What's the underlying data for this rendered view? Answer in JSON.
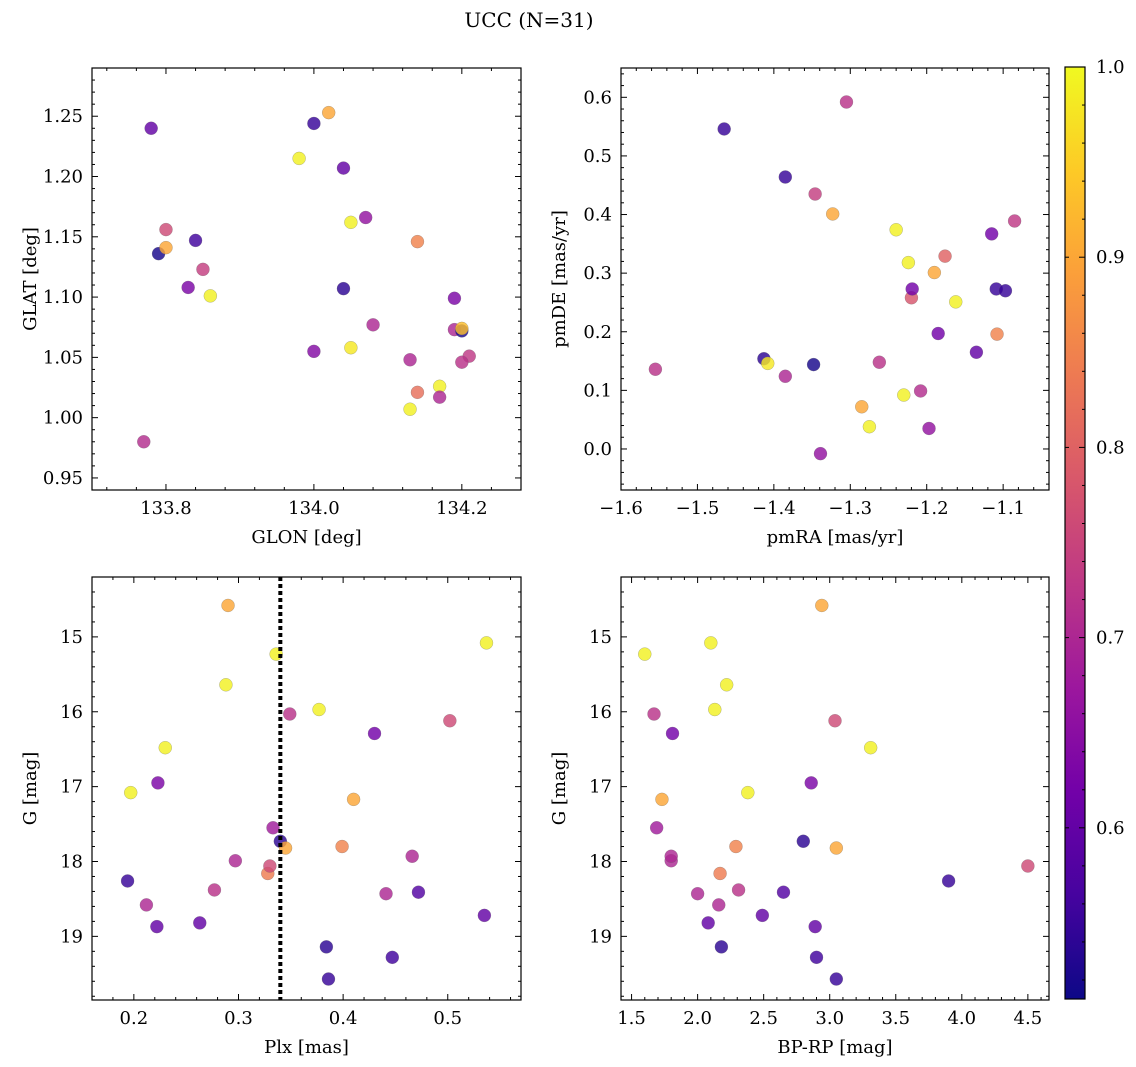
{
  "figure": {
    "suptitle": "UCC (N=31)"
  },
  "colormap": {
    "name": "plasma",
    "clim": [
      0.51,
      1.0
    ],
    "ticks": [
      "0.6",
      "0.7",
      "0.8",
      "0.9",
      "1.0"
    ],
    "tick_values": [
      0.6,
      0.7,
      0.8,
      0.9,
      1.0
    ],
    "stops": [
      "#0d0887",
      "#46039f",
      "#7201a8",
      "#9c179e",
      "#bd3786",
      "#d8576b",
      "#ed7953",
      "#fb9f3a",
      "#fdca26",
      "#f0f921"
    ]
  },
  "chart_data": [
    {
      "type": "scatter",
      "xlabel": "GLON [deg]",
      "ylabel": "GLAT [deg]",
      "xlim": [
        133.7,
        134.28
      ],
      "ylim": [
        0.94,
        1.29
      ],
      "xticks": [
        "133.8",
        "134.0",
        "134.2"
      ],
      "xtick_values": [
        133.8,
        134.0,
        134.2
      ],
      "yticks": [
        "0.95",
        "1.00",
        "1.05",
        "1.10",
        "1.15",
        "1.20",
        "1.25"
      ],
      "ytick_values": [
        0.95,
        1.0,
        1.05,
        1.1,
        1.15,
        1.2,
        1.25
      ],
      "x": [
        133.78,
        133.79,
        133.8,
        133.8,
        133.83,
        133.84,
        133.85,
        133.86,
        133.77,
        134.0,
        134.02,
        133.98,
        134.04,
        134.05,
        134.07,
        134.04,
        134.08,
        134.0,
        134.05,
        134.14,
        134.13,
        134.14,
        134.13,
        134.17,
        134.17,
        134.19,
        134.19,
        134.2,
        134.2,
        134.21,
        134.2
      ],
      "y": [
        1.24,
        1.136,
        1.141,
        1.156,
        1.108,
        1.147,
        1.123,
        1.101,
        0.98,
        1.244,
        1.253,
        1.215,
        1.207,
        1.162,
        1.166,
        1.107,
        1.077,
        1.055,
        1.058,
        1.146,
        1.048,
        1.021,
        1.007,
        1.026,
        1.017,
        1.099,
        1.073,
        1.072,
        1.074,
        1.051,
        1.046
      ],
      "c": [
        0.6,
        0.52,
        0.9,
        0.76,
        0.63,
        0.56,
        0.74,
        0.99,
        0.71,
        0.55,
        0.9,
        0.99,
        0.6,
        0.99,
        0.66,
        0.54,
        0.7,
        0.64,
        0.98,
        0.85,
        0.7,
        0.82,
        0.99,
        0.99,
        0.7,
        0.63,
        0.7,
        0.52,
        0.93,
        0.73,
        0.72
      ]
    },
    {
      "type": "scatter",
      "xlabel": "pmRA [mas/yr]",
      "ylabel": "pmDE [mas/yr]",
      "xlim": [
        -1.6,
        -1.04
      ],
      "ylim": [
        -0.07,
        0.65
      ],
      "xticks": [
        "−1.6",
        "−1.5",
        "−1.4",
        "−1.3",
        "−1.2",
        "−1.1"
      ],
      "xtick_values": [
        -1.6,
        -1.5,
        -1.4,
        -1.3,
        -1.2,
        -1.1
      ],
      "yticks": [
        "0.0",
        "0.1",
        "0.2",
        "0.3",
        "0.4",
        "0.5",
        "0.6"
      ],
      "ytick_values": [
        0.0,
        0.1,
        0.2,
        0.3,
        0.4,
        0.5,
        0.6
      ],
      "x": [
        -1.555,
        -1.465,
        -1.413,
        -1.408,
        -1.385,
        -1.385,
        -1.348,
        -1.346,
        -1.339,
        -1.323,
        -1.305,
        -1.285,
        -1.275,
        -1.262,
        -1.24,
        -1.23,
        -1.224,
        -1.22,
        -1.219,
        -1.208,
        -1.197,
        -1.19,
        -1.185,
        -1.176,
        -1.162,
        -1.135,
        -1.115,
        -1.109,
        -1.108,
        -1.097,
        -1.085
      ],
      "y": [
        0.136,
        0.546,
        0.154,
        0.146,
        0.124,
        0.464,
        0.144,
        0.435,
        -0.008,
        0.401,
        0.592,
        0.072,
        0.038,
        0.148,
        0.374,
        0.092,
        0.318,
        0.258,
        0.273,
        0.099,
        0.035,
        0.301,
        0.197,
        0.329,
        0.251,
        0.165,
        0.367,
        0.273,
        0.196,
        0.27,
        0.389
      ],
      "c": [
        0.72,
        0.55,
        0.54,
        0.98,
        0.7,
        0.55,
        0.52,
        0.74,
        0.66,
        0.9,
        0.72,
        0.9,
        0.99,
        0.72,
        0.99,
        0.99,
        0.99,
        0.78,
        0.62,
        0.71,
        0.66,
        0.9,
        0.62,
        0.8,
        0.99,
        0.6,
        0.62,
        0.55,
        0.85,
        0.55,
        0.73
      ]
    },
    {
      "type": "scatter",
      "xlabel": "Plx [mas]",
      "ylabel": "G [mag]",
      "xlim": [
        0.16,
        0.57
      ],
      "ylim": [
        19.85,
        14.2
      ],
      "xticks": [
        "0.2",
        "0.3",
        "0.4",
        "0.5"
      ],
      "xtick_values": [
        0.2,
        0.3,
        0.4,
        0.5
      ],
      "yticks": [
        "15",
        "16",
        "17",
        "18",
        "19"
      ],
      "ytick_values": [
        15,
        16,
        17,
        18,
        19
      ],
      "vline": 0.34,
      "x": [
        0.194,
        0.197,
        0.212,
        0.222,
        0.223,
        0.23,
        0.263,
        0.277,
        0.288,
        0.29,
        0.297,
        0.328,
        0.33,
        0.333,
        0.336,
        0.34,
        0.345,
        0.349,
        0.377,
        0.384,
        0.386,
        0.399,
        0.41,
        0.43,
        0.441,
        0.447,
        0.466,
        0.472,
        0.502,
        0.535,
        0.537
      ],
      "y": [
        18.26,
        17.08,
        18.58,
        18.87,
        16.95,
        16.48,
        18.82,
        18.38,
        15.64,
        14.58,
        17.99,
        18.16,
        18.06,
        17.55,
        15.23,
        17.73,
        17.82,
        16.03,
        15.97,
        19.14,
        19.57,
        17.8,
        17.17,
        16.29,
        18.43,
        19.28,
        17.93,
        18.41,
        16.12,
        18.72,
        15.08
      ],
      "c": [
        0.55,
        0.99,
        0.7,
        0.6,
        0.63,
        0.99,
        0.6,
        0.72,
        0.99,
        0.9,
        0.7,
        0.84,
        0.76,
        0.68,
        0.99,
        0.54,
        0.9,
        0.72,
        0.99,
        0.54,
        0.55,
        0.85,
        0.9,
        0.62,
        0.7,
        0.56,
        0.7,
        0.58,
        0.76,
        0.6,
        0.99
      ]
    },
    {
      "type": "scatter",
      "xlabel": "BP-RP [mag]",
      "ylabel": "G [mag]",
      "xlim": [
        1.42,
        4.66
      ],
      "ylim": [
        19.85,
        14.2
      ],
      "xticks": [
        "1.5",
        "2.0",
        "2.5",
        "3.0",
        "3.5",
        "4.0",
        "4.5"
      ],
      "xtick_values": [
        1.5,
        2.0,
        2.5,
        3.0,
        3.5,
        4.0,
        4.5
      ],
      "yticks": [
        "15",
        "16",
        "17",
        "18",
        "19"
      ],
      "ytick_values": [
        15,
        16,
        17,
        18,
        19
      ],
      "x": [
        1.6,
        1.67,
        1.69,
        1.73,
        1.8,
        1.8,
        1.81,
        2.0,
        2.08,
        2.1,
        2.13,
        2.16,
        2.17,
        2.18,
        2.22,
        2.29,
        2.31,
        2.38,
        2.49,
        2.65,
        2.8,
        2.86,
        2.89,
        2.9,
        2.94,
        3.04,
        3.05,
        3.05,
        3.31,
        3.9,
        4.5
      ],
      "y": [
        15.23,
        16.03,
        17.55,
        17.17,
        17.99,
        17.93,
        16.29,
        18.43,
        18.82,
        15.08,
        15.97,
        18.58,
        18.16,
        19.14,
        15.64,
        17.8,
        18.38,
        17.08,
        18.72,
        18.41,
        17.73,
        16.95,
        18.87,
        19.28,
        14.58,
        16.12,
        17.82,
        19.57,
        16.48,
        18.26,
        18.06
      ],
      "c": [
        0.99,
        0.72,
        0.68,
        0.9,
        0.7,
        0.7,
        0.62,
        0.7,
        0.6,
        0.99,
        0.99,
        0.7,
        0.84,
        0.54,
        0.99,
        0.85,
        0.72,
        0.99,
        0.6,
        0.58,
        0.54,
        0.63,
        0.6,
        0.56,
        0.9,
        0.76,
        0.9,
        0.55,
        0.99,
        0.55,
        0.76
      ]
    }
  ]
}
